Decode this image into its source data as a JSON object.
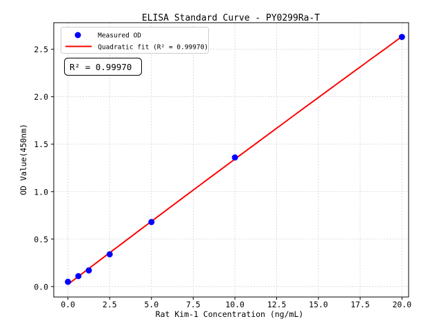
{
  "title": "ELISA Standard Curve - PY0299Ra-T",
  "legend": {
    "position": "upper left",
    "items": [
      {
        "label": "Measured OD",
        "marker": "dot",
        "color": "#0000ff"
      },
      {
        "label": "Quadratic fit (R² = 0.99970)",
        "marker": "line",
        "color": "#ff0000"
      }
    ]
  },
  "annotation": "R² = 0.99970",
  "chart_data": {
    "type": "scatter",
    "title": "ELISA Standard Curve - PY0299Ra-T",
    "xlabel": "Rat Kim-1 Concentration (ng/mL)",
    "ylabel": "OD Value(450nm)",
    "series": [
      {
        "name": "Measured OD",
        "type": "scatter",
        "color": "#0000ff",
        "x": [
          0,
          0.625,
          1.25,
          2.5,
          5,
          10,
          20
        ],
        "y": [
          0.05,
          0.11,
          0.17,
          0.34,
          0.68,
          1.36,
          2.63
        ]
      },
      {
        "name": "Quadratic fit (R² = 0.99970)",
        "type": "quadratic_fit",
        "color": "#ff0000",
        "r_squared": 0.9997,
        "x_range": [
          0,
          20
        ]
      }
    ],
    "xticks": [
      0,
      2.5,
      5,
      7.5,
      10,
      12.5,
      15,
      17.5,
      20
    ],
    "xtick_labels": [
      "0.0",
      "2.5",
      "5.0",
      "7.5",
      "10.0",
      "12.5",
      "15.0",
      "17.5",
      "20.0"
    ],
    "yticks": [
      0,
      0.5,
      1,
      1.5,
      2,
      2.5
    ],
    "ytick_labels": [
      "0.0",
      "0.5",
      "1.0",
      "1.5",
      "2.0",
      "2.5"
    ],
    "xlim": [
      -0.85,
      20.4
    ],
    "ylim": [
      -0.11,
      2.78
    ],
    "grid": true,
    "legend_position": "upper left",
    "marker_radius": 4.5,
    "line_width": 2,
    "background": "#ffffff"
  }
}
